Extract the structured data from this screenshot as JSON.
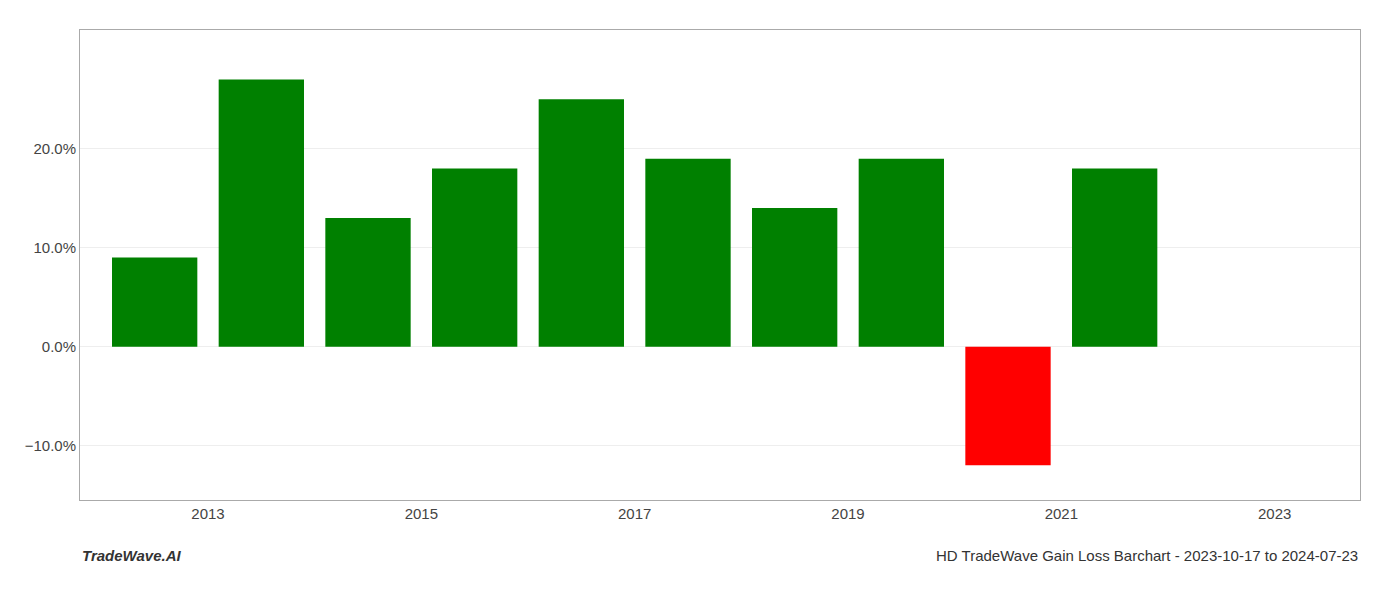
{
  "chart_data": {
    "type": "bar",
    "title": "HD TradeWave Gain Loss Barchart - 2023-10-17 to 2024-07-23",
    "annotations": [
      {
        "text": "TradeWave.AI"
      }
    ],
    "x": [
      2012.5,
      2013.5,
      2014.5,
      2015.5,
      2016.5,
      2017.5,
      2018.5,
      2019.5,
      2020.5,
      2021.5
    ],
    "values": [
      0.09,
      0.27,
      0.13,
      0.18,
      0.25,
      0.19,
      0.14,
      0.19,
      -0.12,
      0.18
    ],
    "colors": [
      "#008000",
      "#008000",
      "#008000",
      "#008000",
      "#008000",
      "#008000",
      "#008000",
      "#008000",
      "#ff0000",
      "#008000"
    ],
    "xlim": [
      2011.8,
      2023.8
    ],
    "xticks": [
      2013,
      2015,
      2017,
      2019,
      2021,
      2023
    ],
    "ylim": [
      -0.155,
      0.32
    ],
    "yticks": [
      {
        "value": -0.1,
        "label": "−10.0%"
      },
      {
        "value": 0.0,
        "label": "0.0%"
      },
      {
        "value": 0.1,
        "label": "10.0%"
      },
      {
        "value": 0.2,
        "label": "20.0%"
      }
    ],
    "grid": true
  }
}
